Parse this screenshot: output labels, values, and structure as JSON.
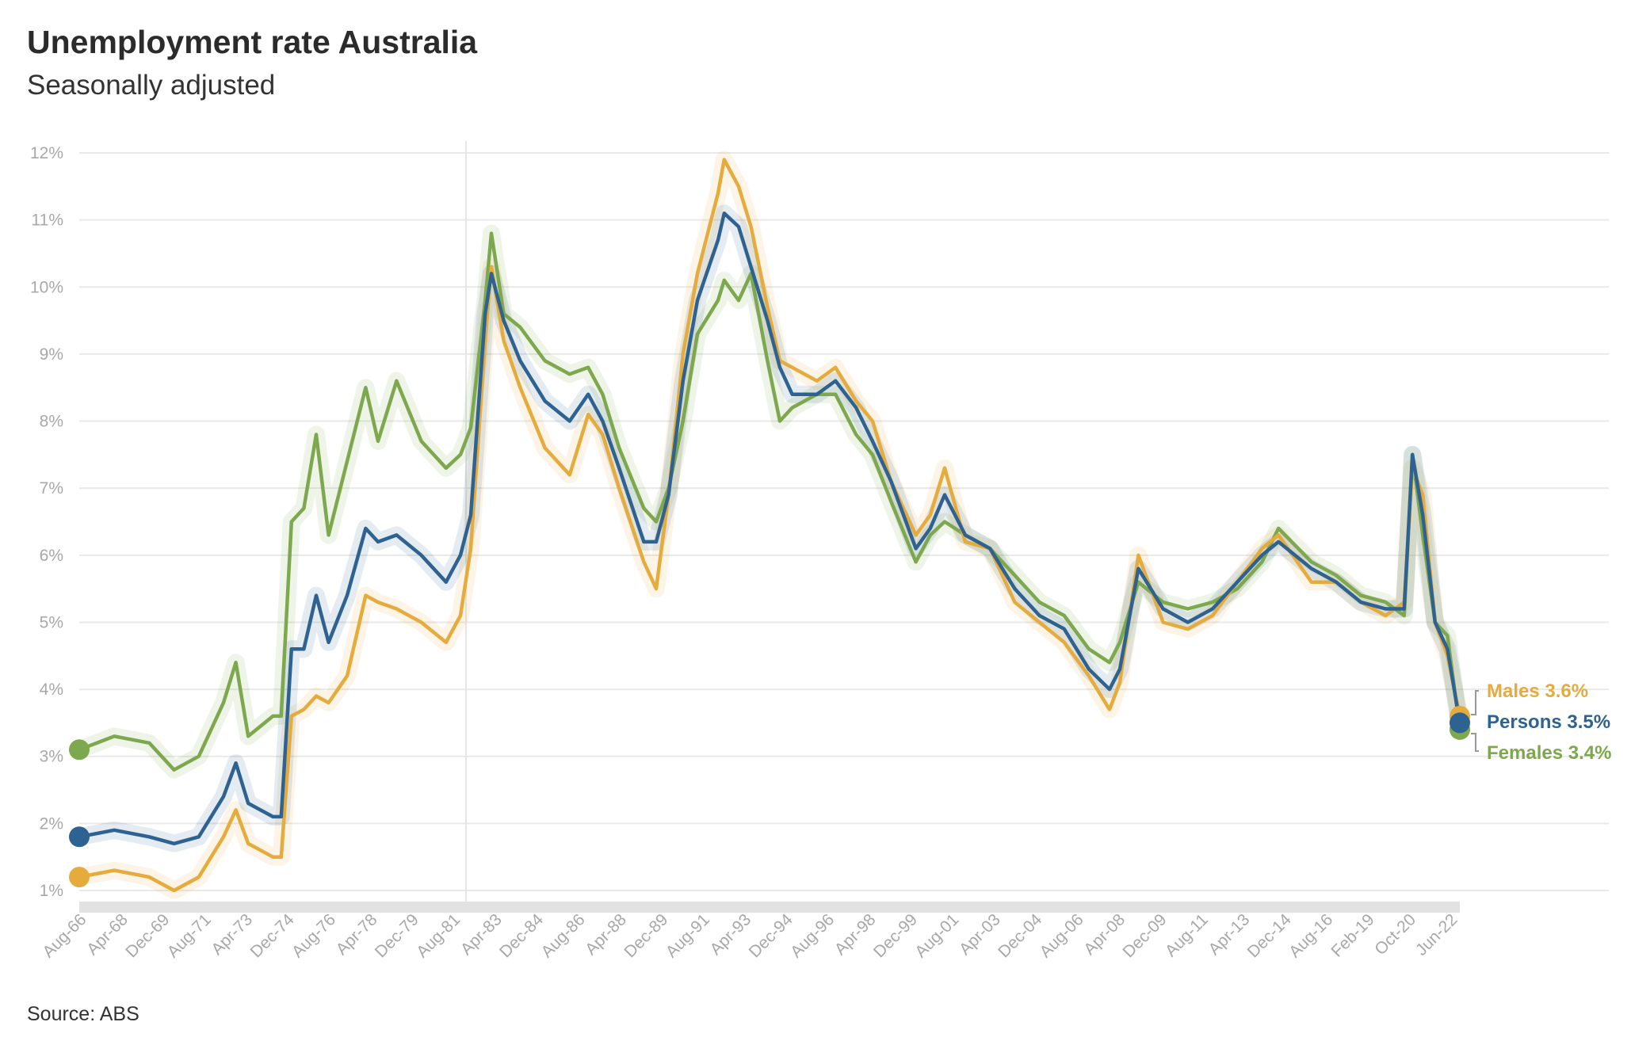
{
  "header": {
    "title": "Unemployment rate Australia",
    "subtitle": "Seasonally adjusted"
  },
  "footer": {
    "source": "Source: ABS"
  },
  "chart_data": {
    "type": "line",
    "title": "Unemployment rate Australia",
    "subtitle": "Seasonally adjusted",
    "xlabel": "",
    "ylabel": "",
    "ylim": [
      1,
      12
    ],
    "y_ticks": [
      "1%",
      "2%",
      "3%",
      "4%",
      "5%",
      "6%",
      "7%",
      "8%",
      "9%",
      "10%",
      "11%",
      "12%"
    ],
    "x_ticks": [
      "Aug-66",
      "Apr-68",
      "Dec-69",
      "Aug-71",
      "Apr-73",
      "Dec-74",
      "Aug-76",
      "Apr-78",
      "Dec-79",
      "Aug-81",
      "Apr-83",
      "Dec-84",
      "Aug-86",
      "Apr-88",
      "Dec-89",
      "Aug-91",
      "Apr-93",
      "Dec-94",
      "Aug-96",
      "Apr-98",
      "Dec-99",
      "Aug-01",
      "Apr-03",
      "Dec-04",
      "Aug-06",
      "Apr-08",
      "Dec-09",
      "Aug-11",
      "Apr-13",
      "Dec-14",
      "Aug-16",
      "Feb-19",
      "Oct-20",
      "Jun-22"
    ],
    "grid": true,
    "legend_placement": "end-of-line labels, right",
    "x_range": [
      "1966-08",
      "2022-06"
    ],
    "series": [
      {
        "name": "Persons",
        "label": "Persons 3.5%",
        "color": "#2e6391",
        "points": [
          [
            "1966-08",
            1.8
          ],
          [
            "1968-01",
            1.9
          ],
          [
            "1969-06",
            1.8
          ],
          [
            "1970-06",
            1.7
          ],
          [
            "1971-06",
            1.8
          ],
          [
            "1972-06",
            2.4
          ],
          [
            "1972-12",
            2.9
          ],
          [
            "1973-06",
            2.3
          ],
          [
            "1974-06",
            2.1
          ],
          [
            "1974-10",
            2.1
          ],
          [
            "1975-03",
            4.6
          ],
          [
            "1975-09",
            4.6
          ],
          [
            "1976-03",
            5.4
          ],
          [
            "1976-09",
            4.7
          ],
          [
            "1977-06",
            5.4
          ],
          [
            "1978-03",
            6.4
          ],
          [
            "1978-09",
            6.2
          ],
          [
            "1979-06",
            6.3
          ],
          [
            "1980-06",
            6.0
          ],
          [
            "1981-06",
            5.6
          ],
          [
            "1982-01",
            6.0
          ],
          [
            "1982-06",
            6.6
          ],
          [
            "1983-01",
            9.6
          ],
          [
            "1983-04",
            10.2
          ],
          [
            "1983-10",
            9.5
          ],
          [
            "1984-06",
            8.9
          ],
          [
            "1985-06",
            8.3
          ],
          [
            "1986-06",
            8.0
          ],
          [
            "1987-03",
            8.4
          ],
          [
            "1987-10",
            8.0
          ],
          [
            "1988-06",
            7.3
          ],
          [
            "1989-06",
            6.2
          ],
          [
            "1989-12",
            6.2
          ],
          [
            "1990-06",
            6.9
          ],
          [
            "1991-01",
            8.6
          ],
          [
            "1991-08",
            9.8
          ],
          [
            "1992-06",
            10.7
          ],
          [
            "1992-09",
            11.1
          ],
          [
            "1993-04",
            10.9
          ],
          [
            "1993-10",
            10.3
          ],
          [
            "1994-06",
            9.5
          ],
          [
            "1994-12",
            8.8
          ],
          [
            "1995-06",
            8.4
          ],
          [
            "1996-06",
            8.4
          ],
          [
            "1997-03",
            8.6
          ],
          [
            "1998-01",
            8.2
          ],
          [
            "1998-09",
            7.7
          ],
          [
            "1999-06",
            7.1
          ],
          [
            "2000-06",
            6.1
          ],
          [
            "2001-01",
            6.4
          ],
          [
            "2001-08",
            6.9
          ],
          [
            "2002-06",
            6.3
          ],
          [
            "2003-06",
            6.1
          ],
          [
            "2004-06",
            5.5
          ],
          [
            "2005-06",
            5.1
          ],
          [
            "2006-06",
            4.9
          ],
          [
            "2007-06",
            4.3
          ],
          [
            "2008-04",
            4.0
          ],
          [
            "2008-09",
            4.3
          ],
          [
            "2009-06",
            5.8
          ],
          [
            "2010-06",
            5.2
          ],
          [
            "2011-06",
            5.0
          ],
          [
            "2012-06",
            5.2
          ],
          [
            "2013-06",
            5.6
          ],
          [
            "2014-06",
            6.0
          ],
          [
            "2015-02",
            6.2
          ],
          [
            "2016-06",
            5.8
          ],
          [
            "2017-06",
            5.6
          ],
          [
            "2018-06",
            5.3
          ],
          [
            "2019-06",
            5.2
          ],
          [
            "2020-03",
            5.2
          ],
          [
            "2020-07",
            7.5
          ],
          [
            "2020-12",
            6.6
          ],
          [
            "2021-06",
            5.0
          ],
          [
            "2021-12",
            4.6
          ],
          [
            "2022-06",
            3.5
          ]
        ]
      },
      {
        "name": "Males",
        "label": "Males 3.6%",
        "color": "#e5ab3c",
        "points": [
          [
            "1966-08",
            1.2
          ],
          [
            "1968-01",
            1.3
          ],
          [
            "1969-06",
            1.2
          ],
          [
            "1970-06",
            1.0
          ],
          [
            "1971-06",
            1.2
          ],
          [
            "1972-06",
            1.8
          ],
          [
            "1972-12",
            2.2
          ],
          [
            "1973-06",
            1.7
          ],
          [
            "1974-06",
            1.5
          ],
          [
            "1974-10",
            1.5
          ],
          [
            "1975-03",
            3.6
          ],
          [
            "1975-09",
            3.7
          ],
          [
            "1976-03",
            3.9
          ],
          [
            "1976-09",
            3.8
          ],
          [
            "1977-06",
            4.2
          ],
          [
            "1978-03",
            5.4
          ],
          [
            "1978-09",
            5.3
          ],
          [
            "1979-06",
            5.2
          ],
          [
            "1980-06",
            5.0
          ],
          [
            "1981-06",
            4.7
          ],
          [
            "1982-01",
            5.1
          ],
          [
            "1982-06",
            6.1
          ],
          [
            "1983-01",
            9.2
          ],
          [
            "1983-04",
            10.3
          ],
          [
            "1983-10",
            9.2
          ],
          [
            "1984-06",
            8.5
          ],
          [
            "1985-06",
            7.6
          ],
          [
            "1986-06",
            7.2
          ],
          [
            "1987-03",
            8.1
          ],
          [
            "1987-10",
            7.8
          ],
          [
            "1988-06",
            7.0
          ],
          [
            "1989-06",
            5.9
          ],
          [
            "1989-12",
            5.5
          ],
          [
            "1990-06",
            6.9
          ],
          [
            "1991-01",
            9.0
          ],
          [
            "1991-08",
            10.2
          ],
          [
            "1992-06",
            11.4
          ],
          [
            "1992-09",
            11.9
          ],
          [
            "1993-04",
            11.5
          ],
          [
            "1993-10",
            10.9
          ],
          [
            "1994-06",
            9.7
          ],
          [
            "1994-12",
            8.9
          ],
          [
            "1995-06",
            8.8
          ],
          [
            "1996-06",
            8.6
          ],
          [
            "1997-03",
            8.8
          ],
          [
            "1998-01",
            8.3
          ],
          [
            "1998-09",
            8.0
          ],
          [
            "1999-06",
            7.1
          ],
          [
            "2000-06",
            6.3
          ],
          [
            "2001-01",
            6.6
          ],
          [
            "2001-08",
            7.3
          ],
          [
            "2002-06",
            6.2
          ],
          [
            "2003-06",
            6.1
          ],
          [
            "2004-06",
            5.3
          ],
          [
            "2005-06",
            5.0
          ],
          [
            "2006-06",
            4.7
          ],
          [
            "2007-06",
            4.2
          ],
          [
            "2008-04",
            3.7
          ],
          [
            "2008-09",
            4.1
          ],
          [
            "2009-06",
            6.0
          ],
          [
            "2010-06",
            5.0
          ],
          [
            "2011-06",
            4.9
          ],
          [
            "2012-06",
            5.1
          ],
          [
            "2013-06",
            5.6
          ],
          [
            "2014-06",
            6.1
          ],
          [
            "2015-02",
            6.3
          ],
          [
            "2016-06",
            5.6
          ],
          [
            "2017-06",
            5.6
          ],
          [
            "2018-06",
            5.3
          ],
          [
            "2019-06",
            5.1
          ],
          [
            "2020-03",
            5.3
          ],
          [
            "2020-07",
            7.3
          ],
          [
            "2020-12",
            6.9
          ],
          [
            "2021-06",
            5.0
          ],
          [
            "2021-12",
            4.5
          ],
          [
            "2022-06",
            3.6
          ]
        ]
      },
      {
        "name": "Females",
        "label": "Females 3.4%",
        "color": "#7ea84d",
        "points": [
          [
            "1966-08",
            3.1
          ],
          [
            "1968-01",
            3.3
          ],
          [
            "1969-06",
            3.2
          ],
          [
            "1970-06",
            2.8
          ],
          [
            "1971-06",
            3.0
          ],
          [
            "1972-06",
            3.8
          ],
          [
            "1972-12",
            4.4
          ],
          [
            "1973-06",
            3.3
          ],
          [
            "1974-06",
            3.6
          ],
          [
            "1974-10",
            3.6
          ],
          [
            "1975-03",
            6.5
          ],
          [
            "1975-09",
            6.7
          ],
          [
            "1976-03",
            7.8
          ],
          [
            "1976-09",
            6.3
          ],
          [
            "1977-06",
            7.4
          ],
          [
            "1978-03",
            8.5
          ],
          [
            "1978-09",
            7.7
          ],
          [
            "1979-06",
            8.6
          ],
          [
            "1980-06",
            7.7
          ],
          [
            "1981-06",
            7.3
          ],
          [
            "1982-01",
            7.5
          ],
          [
            "1982-06",
            7.9
          ],
          [
            "1983-01",
            9.8
          ],
          [
            "1983-04",
            10.8
          ],
          [
            "1983-10",
            9.6
          ],
          [
            "1984-06",
            9.4
          ],
          [
            "1985-06",
            8.9
          ],
          [
            "1986-06",
            8.7
          ],
          [
            "1987-03",
            8.8
          ],
          [
            "1987-10",
            8.4
          ],
          [
            "1988-06",
            7.6
          ],
          [
            "1989-06",
            6.7
          ],
          [
            "1989-12",
            6.5
          ],
          [
            "1990-06",
            7.0
          ],
          [
            "1991-01",
            8.0
          ],
          [
            "1991-08",
            9.3
          ],
          [
            "1992-06",
            9.8
          ],
          [
            "1992-09",
            10.1
          ],
          [
            "1993-04",
            9.8
          ],
          [
            "1993-10",
            10.2
          ],
          [
            "1994-06",
            8.9
          ],
          [
            "1994-12",
            8.0
          ],
          [
            "1995-06",
            8.2
          ],
          [
            "1996-06",
            8.4
          ],
          [
            "1997-03",
            8.4
          ],
          [
            "1998-01",
            7.8
          ],
          [
            "1998-09",
            7.5
          ],
          [
            "1999-06",
            6.8
          ],
          [
            "2000-06",
            5.9
          ],
          [
            "2001-01",
            6.3
          ],
          [
            "2001-08",
            6.5
          ],
          [
            "2002-06",
            6.3
          ],
          [
            "2003-06",
            6.1
          ],
          [
            "2004-06",
            5.7
          ],
          [
            "2005-06",
            5.3
          ],
          [
            "2006-06",
            5.1
          ],
          [
            "2007-06",
            4.6
          ],
          [
            "2008-04",
            4.4
          ],
          [
            "2008-09",
            4.7
          ],
          [
            "2009-06",
            5.6
          ],
          [
            "2010-06",
            5.3
          ],
          [
            "2011-06",
            5.2
          ],
          [
            "2012-06",
            5.3
          ],
          [
            "2013-06",
            5.5
          ],
          [
            "2014-06",
            5.9
          ],
          [
            "2015-02",
            6.4
          ],
          [
            "2016-06",
            5.9
          ],
          [
            "2017-06",
            5.7
          ],
          [
            "2018-06",
            5.4
          ],
          [
            "2019-06",
            5.3
          ],
          [
            "2020-03",
            5.1
          ],
          [
            "2020-07",
            7.5
          ],
          [
            "2020-12",
            6.3
          ],
          [
            "2021-06",
            5.0
          ],
          [
            "2021-12",
            4.8
          ],
          [
            "2022-06",
            3.4
          ]
        ]
      }
    ]
  }
}
